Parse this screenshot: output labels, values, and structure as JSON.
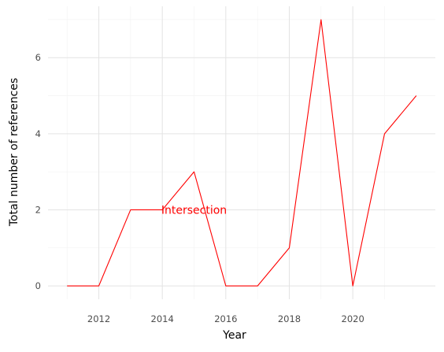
{
  "chart_data": {
    "type": "line",
    "title": "",
    "xlabel": "Year",
    "ylabel": "Total number of references",
    "x": [
      2011,
      2012,
      2013,
      2014,
      2015,
      2016,
      2017,
      2018,
      2019,
      2020,
      2021,
      2022
    ],
    "series": [
      {
        "values": [
          0,
          0,
          2,
          2,
          3,
          0,
          0,
          1,
          7,
          0,
          4,
          5
        ],
        "color": "#ff0000"
      }
    ],
    "annotation": {
      "text": "Intersection",
      "x": 2015,
      "y": 2,
      "color": "#ff0000"
    },
    "xlim": [
      2010.4,
      2022.6
    ],
    "ylim": [
      -0.35,
      7.35
    ],
    "x_ticks": [
      2012,
      2014,
      2016,
      2018,
      2020
    ],
    "y_ticks": [
      0,
      2,
      4,
      6
    ],
    "grid": true,
    "legend": "none"
  }
}
